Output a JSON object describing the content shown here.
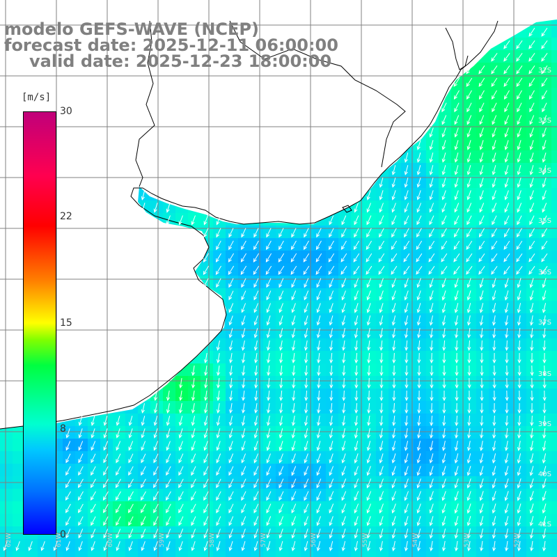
{
  "title": {
    "line1": "modelo GEFS-WAVE (NCEP)",
    "line2": "forecast date: 2025-12-11 06:00:00",
    "line3": "valid date: 2025-12-23 18:00:00"
  },
  "colorbar": {
    "unit": "[m/s]",
    "ticks": [
      "30",
      "22",
      "15",
      "8",
      "0"
    ],
    "tick_values": [
      30,
      22,
      15,
      8,
      0
    ],
    "min": 0,
    "max": 30
  },
  "lat_labels": [
    "32S",
    "33S",
    "34S",
    "35S",
    "36S",
    "37S",
    "38S",
    "39S",
    "40S",
    "41S"
  ],
  "lon_labels": [
    "62W",
    "61W",
    "60W",
    "59W",
    "58W",
    "57W",
    "56W",
    "55W",
    "54W",
    "53W",
    "52W"
  ],
  "colors": {
    "land": "#ffffff",
    "grid": "#808080",
    "coast": "#000000",
    "arrow": "#ffffff"
  },
  "wind_field": {
    "description_units": "m/s",
    "typical_open_sea_speed": 7,
    "nearshore_high_speed": 12,
    "northeast_high_speed": 11
  }
}
